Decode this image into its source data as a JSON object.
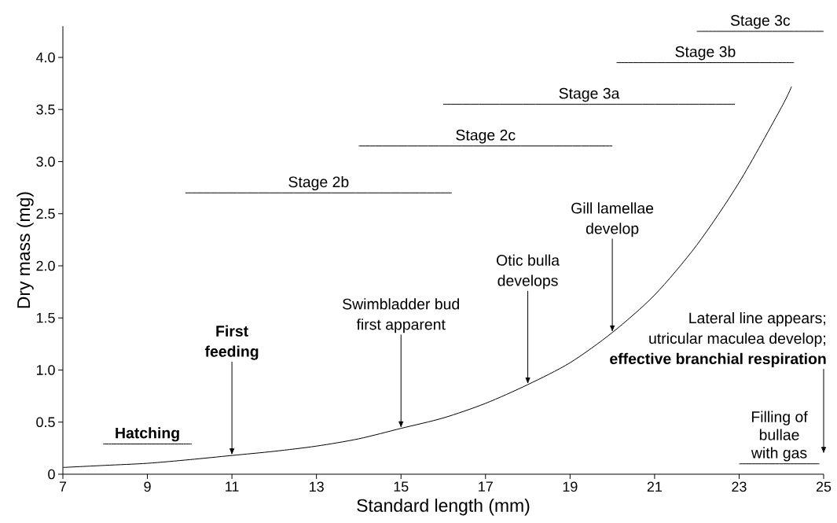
{
  "chart_data": {
    "type": "line",
    "xlabel": "Standard length (mm)",
    "ylabel": "Dry mass (mg)",
    "xlim": [
      7,
      25
    ],
    "ylim": [
      0,
      4.3
    ],
    "xticks": [
      7,
      9,
      11,
      13,
      15,
      17,
      19,
      21,
      23,
      25
    ],
    "yticks": [
      {
        "value": 0,
        "label": "0"
      },
      0.5,
      {
        "value": 1,
        "label": "1.0"
      },
      1.5,
      {
        "value": 2,
        "label": "2.0"
      },
      2.5,
      {
        "value": 3,
        "label": "3.0"
      },
      3.5,
      {
        "value": 4,
        "label": "4.0"
      }
    ],
    "series": [
      {
        "color": "#000000",
        "x": [
          7,
          8,
          9,
          10,
          11,
          12,
          13,
          14,
          15,
          16,
          17,
          18,
          19,
          20,
          21,
          22,
          23,
          24,
          24.24
        ],
        "values": [
          0.065,
          0.085,
          0.105,
          0.14,
          0.18,
          0.22,
          0.27,
          0.34,
          0.44,
          0.54,
          0.68,
          0.86,
          1.07,
          1.36,
          1.72,
          2.2,
          2.8,
          3.52,
          3.72
        ]
      },
      {
        "name": "**Hatching**",
        "color": "#000000",
        "x": [
          7.95,
          10.05
        ],
        "values": [
          0.29,
          0.29
        ]
      },
      {
        "name": "Stage 2b",
        "color": "#000000",
        "x": [
          9.9,
          16.2
        ],
        "values": [
          2.7,
          2.7
        ]
      },
      {
        "name": "Stage 2c",
        "color": "#000000",
        "x": [
          14.0,
          20.0
        ],
        "values": [
          3.15,
          3.15
        ]
      },
      {
        "name": "Stage 3a",
        "color": "#000000",
        "x": [
          16.0,
          22.9
        ],
        "values": [
          3.55,
          3.55
        ]
      },
      {
        "name": "Stage 3b",
        "color": "#000000",
        "x": [
          20.1,
          24.3
        ],
        "values": [
          3.95,
          3.95
        ]
      },
      {
        "name": "Stage 3c",
        "color": "#000000",
        "x": [
          22.0,
          25.0
        ],
        "values": [
          4.25,
          4.25
        ]
      },
      {
        "name": "Filling of\nbullae\nwith gas",
        "color": "#000000",
        "x": [
          23.0,
          24.9
        ],
        "values": [
          0.1,
          0.1
        ]
      }
    ],
    "annotations": [
      {
        "text": "**First\nfeeding**",
        "x": 11,
        "y": 0.18
      },
      {
        "text": "Swimbladder bud\nfirst apparent",
        "x": 15,
        "y": 0.44
      },
      {
        "text": "Otic bulla\ndevelops",
        "x": 18,
        "y": 0.86
      },
      {
        "text": "Gill lamellae\ndevelop",
        "x": 20,
        "y": 1.36
      },
      "Lateral line appears;\nutricular maculea develop;\n**effective branchial respiration**"
    ]
  }
}
